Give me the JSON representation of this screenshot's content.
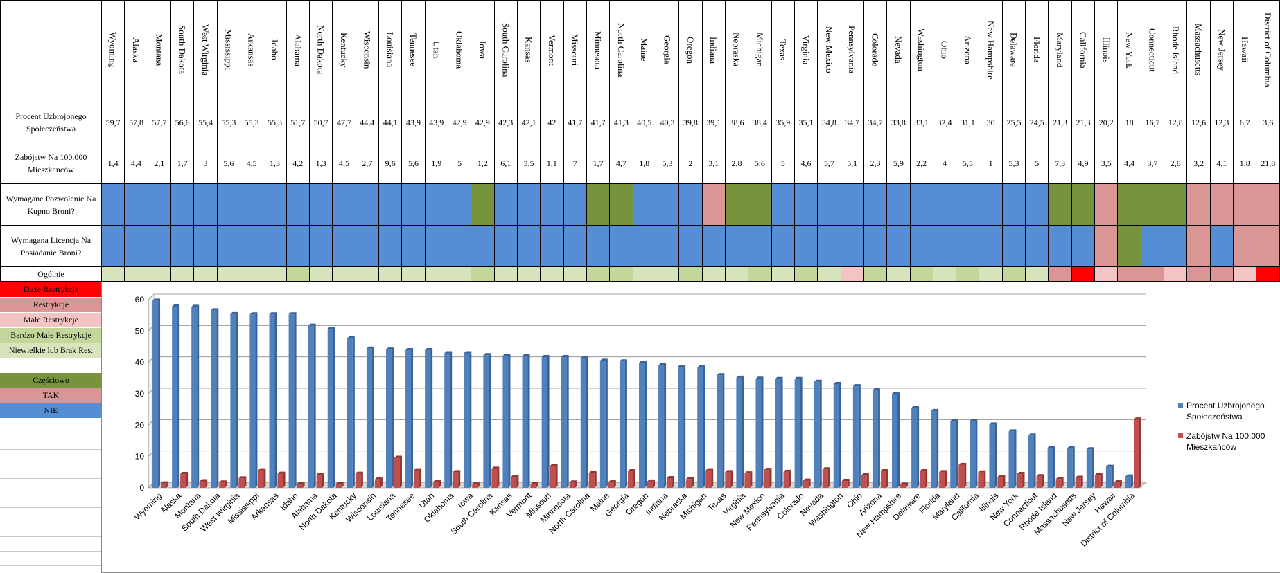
{
  "table": {
    "row_labels": {
      "percent": "Procent Uzbrojonego Społeczeństwa",
      "murders": "Zabójstw Na 100.000 Mieszkańców",
      "permit": "Wymagane Pozwolenie Na Kupno Broni?",
      "license": "Wymagana Licencja Na Posiadanie Broni?",
      "overall": "Ogólnie"
    },
    "states": [
      "Wyoming",
      "Alaska",
      "Montana",
      "South Dakota",
      "West Wirginia",
      "Mississippi",
      "Arkansas",
      "Idaho",
      "Alabama",
      "North Dakota",
      "Kentucky",
      "Wisconsin",
      "Louisiana",
      "Tennesee",
      "Utah",
      "Oklahoma",
      "Iowa",
      "South Carolina",
      "Kansas",
      "Vermont",
      "Missouri",
      "Minnesota",
      "North Carolina",
      "Maine",
      "Georgia",
      "Oregon",
      "Indiana",
      "Nebraska",
      "Michigan",
      "Texas",
      "Virginia",
      "New Mexico",
      "Pennsylvania",
      "Colorado",
      "Nevada",
      "Washington",
      "Ohio",
      "Arizona",
      "New Hampshire",
      "Delaware",
      "Florida",
      "Maryland",
      "California",
      "Illinois",
      "New York",
      "Connecticut",
      "Rhode Island",
      "Massachusetts",
      "New Jersey",
      "Hawaii",
      "District of Columbia"
    ],
    "percent_values": [
      "59,7",
      "57,8",
      "57,7",
      "56,6",
      "55,4",
      "55,3",
      "55,3",
      "55,3",
      "51,7",
      "50,7",
      "47,7",
      "44,4",
      "44,1",
      "43,9",
      "43,9",
      "42,9",
      "42,9",
      "42,3",
      "42,1",
      "42",
      "41,7",
      "41,7",
      "41,3",
      "40,5",
      "40,3",
      "39,8",
      "39,1",
      "38,6",
      "38,4",
      "35,9",
      "35,1",
      "34,8",
      "34,7",
      "34,7",
      "33,8",
      "33,1",
      "32,4",
      "31,1",
      "30",
      "25,5",
      "24,5",
      "21,3",
      "21,3",
      "20,2",
      "18",
      "16,7",
      "12,8",
      "12,6",
      "12,3",
      "6,7",
      "3,6"
    ],
    "murder_values": [
      "1,4",
      "4,4",
      "2,1",
      "1,7",
      "3",
      "5,6",
      "4,5",
      "1,3",
      "4,2",
      "1,3",
      "4,5",
      "2,7",
      "9,6",
      "5,6",
      "1,9",
      "5",
      "1,2",
      "6,1",
      "3,5",
      "1,1",
      "7",
      "1,7",
      "4,7",
      "1,8",
      "5,3",
      "2",
      "3,1",
      "2,8",
      "5,6",
      "5",
      "4,6",
      "5,7",
      "5,1",
      "2,3",
      "5,9",
      "2,2",
      "4",
      "5,5",
      "1",
      "5,3",
      "5",
      "7,3",
      "4,9",
      "3,5",
      "4,4",
      "3,7",
      "2,8",
      "3,2",
      "4,1",
      "1,8",
      "21,8"
    ],
    "permit_status": [
      "NIE",
      "NIE",
      "NIE",
      "NIE",
      "NIE",
      "NIE",
      "NIE",
      "NIE",
      "NIE",
      "NIE",
      "NIE",
      "NIE",
      "NIE",
      "NIE",
      "NIE",
      "NIE",
      "CZESC",
      "NIE",
      "NIE",
      "NIE",
      "NIE",
      "CZESC",
      "CZESC",
      "NIE",
      "NIE",
      "NIE",
      "TAK",
      "CZESC",
      "CZESC",
      "NIE",
      "NIE",
      "NIE",
      "NIE",
      "NIE",
      "NIE",
      "NIE",
      "NIE",
      "NIE",
      "NIE",
      "NIE",
      "NIE",
      "CZESC",
      "CZESC",
      "TAK",
      "CZESC",
      "CZESC",
      "CZESC",
      "TAK",
      "TAK",
      "TAK",
      "TAK"
    ],
    "license_status": [
      "NIE",
      "NIE",
      "NIE",
      "NIE",
      "NIE",
      "NIE",
      "NIE",
      "NIE",
      "NIE",
      "NIE",
      "NIE",
      "NIE",
      "NIE",
      "NIE",
      "NIE",
      "NIE",
      "NIE",
      "NIE",
      "NIE",
      "NIE",
      "NIE",
      "NIE",
      "NIE",
      "NIE",
      "NIE",
      "NIE",
      "NIE",
      "NIE",
      "NIE",
      "NIE",
      "NIE",
      "NIE",
      "NIE",
      "NIE",
      "NIE",
      "NIE",
      "NIE",
      "NIE",
      "NIE",
      "NIE",
      "NIE",
      "NIE",
      "NIE",
      "TAK",
      "CZESC",
      "NIE",
      "NIE",
      "TAK",
      "NIE",
      "TAK",
      "TAK"
    ],
    "overall_status": [
      "BRAK",
      "BRAK",
      "BRAK",
      "BRAK",
      "BRAK",
      "BRAK",
      "BRAK",
      "BRAK",
      "BMALE",
      "BRAK",
      "BRAK",
      "BRAK",
      "BRAK",
      "BRAK",
      "BRAK",
      "BRAK",
      "BMALE",
      "BRAK",
      "BRAK",
      "BRAK",
      "BRAK",
      "BMALE",
      "BMALE",
      "BRAK",
      "BRAK",
      "BMALE",
      "BRAK",
      "BRAK",
      "BMALE",
      "BRAK",
      "BMALE",
      "BRAK",
      "MALE",
      "BMALE",
      "BRAK",
      "BMALE",
      "BRAK",
      "BMALE",
      "BRAK",
      "BMALE",
      "BRAK",
      "REST",
      "DUZE",
      "MALE",
      "REST",
      "REST",
      "MALE",
      "REST",
      "REST",
      "MALE",
      "DUZE"
    ]
  },
  "status_colors": {
    "NIE": "#558ED5",
    "TAK": "#D99694",
    "CZESC": "#77933C",
    "DUZE": "#FF0000",
    "REST": "#DA9694",
    "MALE": "#F2C4C3",
    "BMALE": "#C4D79B",
    "BRAK": "#D8E4BC"
  },
  "legend": {
    "overall": [
      {
        "key": "DUZE",
        "label": "Duże Restrykcje"
      },
      {
        "key": "REST",
        "label": "Restrykcje"
      },
      {
        "key": "MALE",
        "label": "Małe Restrykcje"
      },
      {
        "key": "BMALE",
        "label": "Bardzo Małe Restrykcje"
      },
      {
        "key": "BRAK",
        "label": "Niewielkie lub Brak Res."
      }
    ],
    "permit": [
      {
        "key": "CZESC",
        "label": "Częściowo"
      },
      {
        "key": "TAK",
        "label": "TAK"
      },
      {
        "key": "NIE",
        "label": "NIE"
      }
    ]
  },
  "chart_data": {
    "type": "bar",
    "categories": [
      "Wyoming",
      "Alaska",
      "Montana",
      "South Dakota",
      "West Wirginia",
      "Mississippi",
      "Arkansas",
      "Idaho",
      "Alabama",
      "North Dakota",
      "Kentucky",
      "Wisconsin",
      "Louisiana",
      "Tennesee",
      "Utah",
      "Oklahoma",
      "Iowa",
      "South Carolina",
      "Kansas",
      "Vermont",
      "Missouri",
      "Minnesota",
      "North Carolina",
      "Maine",
      "Georgia",
      "Oregon",
      "Indiana",
      "Nebraska",
      "Michigan",
      "Texas",
      "Virginia",
      "New Mexico",
      "Pennsylvania",
      "Colorado",
      "Nevada",
      "Washington",
      "Ohio",
      "Arizona",
      "New Hampshire",
      "Delaware",
      "Florida",
      "Maryland",
      "California",
      "Illinois",
      "New York",
      "Connecticut",
      "Rhode Island",
      "Massachusetts",
      "New Jersey",
      "Hawaii",
      "District of Columbia"
    ],
    "series": [
      {
        "name": "Procent Uzbrojonego Społeczeństwa",
        "color": "#4F81BD",
        "values": [
          59.7,
          57.8,
          57.7,
          56.6,
          55.4,
          55.3,
          55.3,
          55.3,
          51.7,
          50.7,
          47.7,
          44.4,
          44.1,
          43.9,
          43.9,
          42.9,
          42.9,
          42.3,
          42.1,
          42,
          41.7,
          41.7,
          41.3,
          40.5,
          40.3,
          39.8,
          39.1,
          38.6,
          38.4,
          35.9,
          35.1,
          34.8,
          34.7,
          34.7,
          33.8,
          33.1,
          32.4,
          31.1,
          30,
          25.5,
          24.5,
          21.3,
          21.3,
          20.2,
          18,
          16.7,
          12.8,
          12.6,
          12.3,
          6.7,
          3.6
        ]
      },
      {
        "name": "Zabójstw Na 100.000 Mieszkańców",
        "color": "#C0504D",
        "values": [
          1.4,
          4.4,
          2.1,
          1.7,
          3,
          5.6,
          4.5,
          1.3,
          4.2,
          1.3,
          4.5,
          2.7,
          9.6,
          5.6,
          1.9,
          5,
          1.2,
          6.1,
          3.5,
          1.1,
          7,
          1.7,
          4.7,
          1.8,
          5.3,
          2,
          3.1,
          2.8,
          5.6,
          5,
          4.6,
          5.7,
          5.1,
          2.3,
          5.9,
          2.2,
          4,
          5.5,
          1,
          5.3,
          5,
          7.3,
          4.9,
          3.5,
          4.4,
          3.7,
          2.8,
          3.2,
          4.1,
          1.8,
          21.8
        ]
      }
    ],
    "yticks": [
      "0",
      "10",
      "20",
      "30",
      "40",
      "50",
      "60"
    ],
    "ylim": [
      0,
      60
    ],
    "grid": true,
    "legend_position": "right"
  }
}
